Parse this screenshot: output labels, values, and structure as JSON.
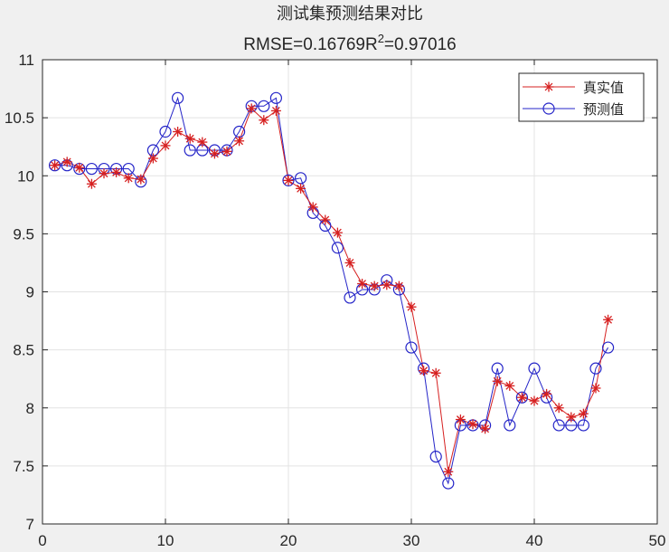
{
  "chart_data": {
    "type": "line",
    "title": "测试集预测结果对比",
    "subtitle_prefix": "RMSE=0.16769R",
    "subtitle_sup": "2",
    "subtitle_suffix": "=0.97016",
    "xlabel": "",
    "ylabel": "",
    "xlim": [
      0,
      50
    ],
    "ylim": [
      7,
      11
    ],
    "xticks": [
      0,
      10,
      20,
      30,
      40,
      50
    ],
    "yticks": [
      7,
      7.5,
      8,
      8.5,
      9,
      9.5,
      10,
      10.5,
      11
    ],
    "xtick_labels": [
      "0",
      "10",
      "20",
      "30",
      "40",
      "50"
    ],
    "ytick_labels": [
      "7",
      "7.5",
      "8",
      "8.5",
      "9",
      "9.5",
      "10",
      "10.5",
      "11"
    ],
    "grid": true,
    "legend_position": "top-right",
    "x": [
      1,
      2,
      3,
      4,
      5,
      6,
      7,
      8,
      9,
      10,
      11,
      12,
      13,
      14,
      15,
      16,
      17,
      18,
      19,
      20,
      21,
      22,
      23,
      24,
      25,
      26,
      27,
      28,
      29,
      30,
      31,
      32,
      33,
      34,
      35,
      36,
      37,
      38,
      39,
      40,
      41,
      42,
      43,
      44,
      45,
      46
    ],
    "series": [
      {
        "name": "真实值",
        "color": "#d62020",
        "marker": "asterisk",
        "values": [
          10.09,
          10.12,
          10.07,
          9.93,
          10.02,
          10.03,
          9.98,
          9.97,
          10.15,
          10.26,
          10.38,
          10.32,
          10.29,
          10.19,
          10.21,
          10.3,
          10.58,
          10.48,
          10.56,
          9.96,
          9.89,
          9.73,
          9.62,
          9.51,
          9.25,
          9.07,
          9.05,
          9.06,
          9.05,
          8.87,
          8.32,
          8.3,
          7.45,
          7.9,
          7.86,
          7.82,
          8.23,
          8.19,
          8.09,
          8.06,
          8.12,
          8.0,
          7.92,
          7.95,
          8.17,
          8.76
        ]
      },
      {
        "name": "预测值",
        "color": "#2424c8",
        "marker": "circle",
        "values": [
          10.09,
          10.09,
          10.06,
          10.06,
          10.06,
          10.06,
          10.06,
          9.95,
          10.22,
          10.38,
          10.67,
          10.22,
          10.22,
          10.22,
          10.22,
          10.38,
          10.6,
          10.6,
          10.67,
          9.96,
          9.98,
          9.68,
          9.57,
          9.38,
          8.95,
          9.02,
          9.02,
          9.1,
          9.02,
          8.52,
          8.34,
          7.58,
          7.35,
          7.85,
          7.85,
          7.85,
          8.34,
          7.85,
          8.09,
          8.34,
          8.09,
          7.85,
          7.85,
          7.85,
          8.34,
          8.52
        ]
      }
    ]
  }
}
